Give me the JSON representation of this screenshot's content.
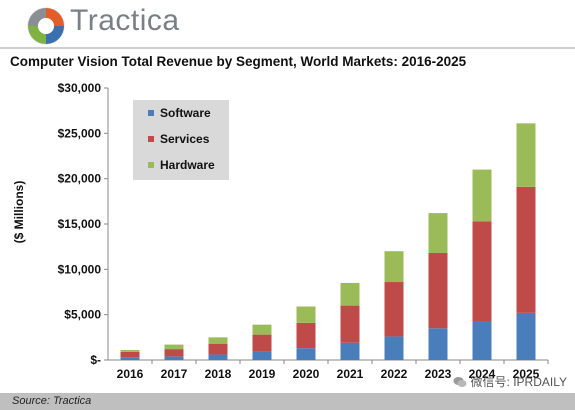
{
  "brand": {
    "name": "Tractica"
  },
  "source": "Source: Tractica",
  "watermark": "微信号: IPRDAILY",
  "colors": {
    "software": "#4a7ebb",
    "services": "#be4b48",
    "hardware": "#9bbb59"
  },
  "chart_data": {
    "type": "bar",
    "stacked": true,
    "title": "Computer Vision Total Revenue by Segment, World Markets: 2016-2025",
    "xlabel": "",
    "ylabel": "($ Millions)",
    "ylim": [
      0,
      30000
    ],
    "y_tick_labels": [
      "$-",
      "$5,000",
      "$10,000",
      "$15,000",
      "$20,000",
      "$25,000",
      "$30,000"
    ],
    "grid": false,
    "legend_position": "top-left",
    "categories": [
      "2016",
      "2017",
      "2018",
      "2019",
      "2020",
      "2021",
      "2022",
      "2023",
      "2024",
      "2025"
    ],
    "series": [
      {
        "name": "Software",
        "values": [
          300,
          400,
          600,
          900,
          1300,
          1900,
          2600,
          3500,
          4300,
          5200
        ]
      },
      {
        "name": "Services",
        "values": [
          600,
          800,
          1200,
          1900,
          2800,
          4100,
          6000,
          8300,
          11000,
          13900
        ]
      },
      {
        "name": "Hardware",
        "values": [
          200,
          500,
          700,
          1100,
          1800,
          2500,
          3400,
          4400,
          5700,
          7000
        ]
      }
    ]
  }
}
